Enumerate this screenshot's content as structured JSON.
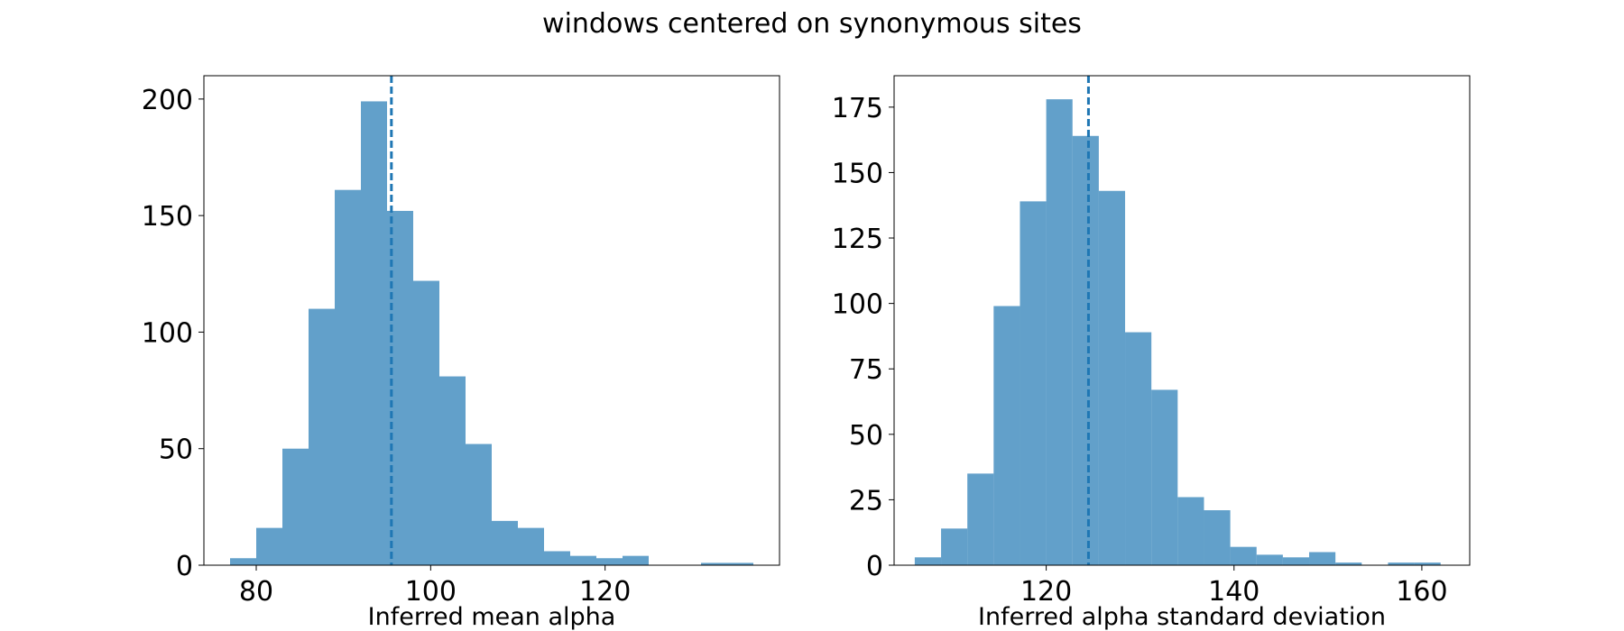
{
  "figure": {
    "suptitle": "windows centered on synonymous sites",
    "bar_color": "#1f77b4",
    "bar_opacity": 0.7,
    "line_color": "#1f77b4"
  },
  "chart_data": [
    {
      "type": "bar",
      "title": "",
      "xlabel": "Inferred mean alpha",
      "ylabel": "",
      "xlim": [
        74,
        140
      ],
      "ylim": [
        0,
        210
      ],
      "xticks": [
        80,
        100,
        120
      ],
      "yticks": [
        0,
        50,
        100,
        150,
        200
      ],
      "bin_edges": [
        77.0,
        80.0,
        83.0,
        86.0,
        89.0,
        92.0,
        95.0,
        98.0,
        101.0,
        104.0,
        107.0,
        110.0,
        113.0,
        116.0,
        119.0,
        122.0,
        125.0,
        128.0,
        131.0,
        134.0,
        137.0
      ],
      "values": [
        3,
        16,
        50,
        110,
        161,
        199,
        152,
        122,
        81,
        52,
        19,
        16,
        6,
        4,
        3,
        4,
        0,
        0,
        1,
        1
      ],
      "mean_line": 95.5,
      "grid": false,
      "legend": "none"
    },
    {
      "type": "bar",
      "title": "",
      "xlabel": "Inferred alpha standard deviation",
      "ylabel": "",
      "xlim": [
        103.8,
        165.1
      ],
      "ylim": [
        0,
        187
      ],
      "xticks": [
        120,
        140,
        160
      ],
      "yticks": [
        0,
        25,
        50,
        75,
        100,
        125,
        150,
        175
      ],
      "bin_edges": [
        106.0,
        108.8,
        111.6,
        114.4,
        117.2,
        120.0,
        122.8,
        125.6,
        128.4,
        131.2,
        134.0,
        136.8,
        139.6,
        142.4,
        145.2,
        148.0,
        150.8,
        153.6,
        156.4,
        159.2,
        162.0
      ],
      "values": [
        3,
        14,
        35,
        99,
        139,
        178,
        164,
        143,
        89,
        67,
        26,
        21,
        7,
        4,
        3,
        5,
        1,
        0,
        1,
        1
      ],
      "mean_line": 124.5,
      "grid": false,
      "legend": "none"
    }
  ]
}
